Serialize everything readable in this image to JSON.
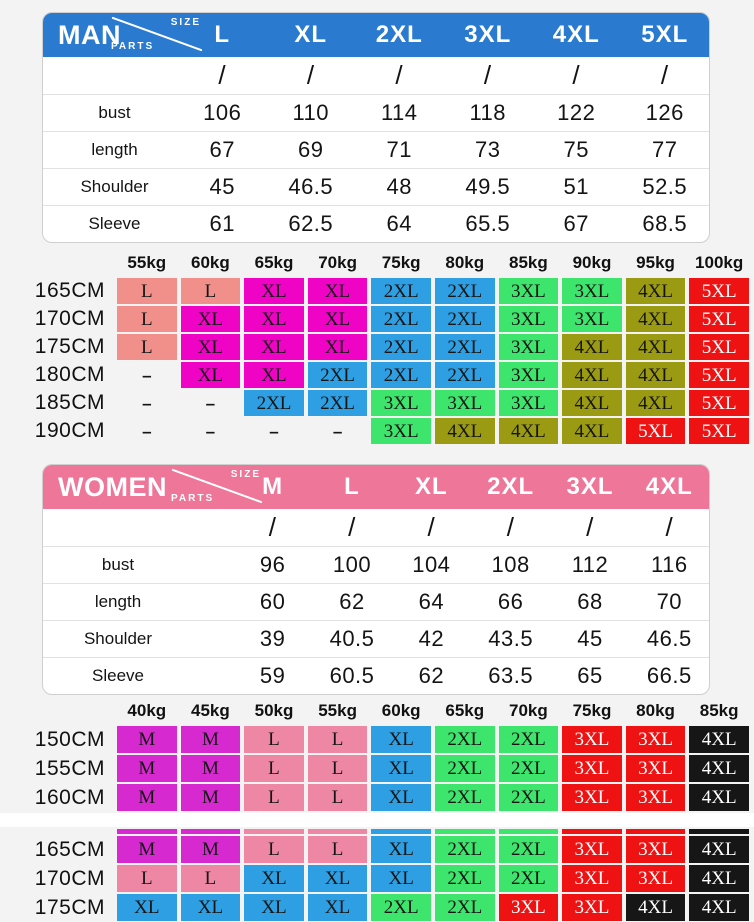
{
  "colors": {
    "salmon": "#f1908a",
    "magenta": "#ef04c6",
    "blue": "#2d9fe2",
    "green": "#3de56d",
    "olive": "#9b9b13",
    "red": "#ee1212",
    "purple": "#d62ad0",
    "pink": "#ee87a3",
    "black": "#161616"
  },
  "white_text": [
    "red",
    "black"
  ],
  "man": {
    "title": "MAN",
    "corner_size": "SIZE",
    "corner_parts": "PARTS",
    "sizes": [
      "L",
      "XL",
      "2XL",
      "3XL",
      "4XL",
      "5XL"
    ],
    "rows": [
      {
        "label": "",
        "values": [
          "/",
          "/",
          "/",
          "/",
          "/",
          "/"
        ]
      },
      {
        "label": "bust",
        "values": [
          "106",
          "110",
          "114",
          "118",
          "122",
          "126"
        ]
      },
      {
        "label": "length",
        "values": [
          "67",
          "69",
          "71",
          "73",
          "75",
          "77"
        ]
      },
      {
        "label": "Shoulder",
        "values": [
          "45",
          "46.5",
          "48",
          "49.5",
          "51",
          "52.5"
        ]
      },
      {
        "label": "Sleeve",
        "values": [
          "61",
          "62.5",
          "64",
          "65.5",
          "67",
          "68.5"
        ]
      }
    ],
    "grid": {
      "weights": [
        "55kg",
        "60kg",
        "65kg",
        "70kg",
        "75kg",
        "80kg",
        "85kg",
        "90kg",
        "95kg",
        "100kg"
      ],
      "rows": [
        {
          "h": "165CM",
          "c": [
            [
              "L",
              "salmon"
            ],
            [
              "L",
              "salmon"
            ],
            [
              "XL",
              "magenta"
            ],
            [
              "XL",
              "magenta"
            ],
            [
              "2XL",
              "blue"
            ],
            [
              "2XL",
              "blue"
            ],
            [
              "3XL",
              "green"
            ],
            [
              "3XL",
              "green"
            ],
            [
              "4XL",
              "olive"
            ],
            [
              "5XL",
              "red"
            ]
          ]
        },
        {
          "h": "170CM",
          "c": [
            [
              "L",
              "salmon"
            ],
            [
              "XL",
              "magenta"
            ],
            [
              "XL",
              "magenta"
            ],
            [
              "XL",
              "magenta"
            ],
            [
              "2XL",
              "blue"
            ],
            [
              "2XL",
              "blue"
            ],
            [
              "3XL",
              "green"
            ],
            [
              "3XL",
              "green"
            ],
            [
              "4XL",
              "olive"
            ],
            [
              "5XL",
              "red"
            ]
          ]
        },
        {
          "h": "175CM",
          "c": [
            [
              "L",
              "salmon"
            ],
            [
              "XL",
              "magenta"
            ],
            [
              "XL",
              "magenta"
            ],
            [
              "XL",
              "magenta"
            ],
            [
              "2XL",
              "blue"
            ],
            [
              "2XL",
              "blue"
            ],
            [
              "3XL",
              "green"
            ],
            [
              "4XL",
              "olive"
            ],
            [
              "4XL",
              "olive"
            ],
            [
              "5XL",
              "red"
            ]
          ]
        },
        {
          "h": "180CM",
          "c": [
            [
              "–",
              "none"
            ],
            [
              "XL",
              "magenta"
            ],
            [
              "XL",
              "magenta"
            ],
            [
              "2XL",
              "blue"
            ],
            [
              "2XL",
              "blue"
            ],
            [
              "2XL",
              "blue"
            ],
            [
              "3XL",
              "green"
            ],
            [
              "4XL",
              "olive"
            ],
            [
              "4XL",
              "olive"
            ],
            [
              "5XL",
              "red"
            ]
          ]
        },
        {
          "h": "185CM",
          "c": [
            [
              "–",
              "none"
            ],
            [
              "–",
              "none"
            ],
            [
              "2XL",
              "blue"
            ],
            [
              "2XL",
              "blue"
            ],
            [
              "3XL",
              "green"
            ],
            [
              "3XL",
              "green"
            ],
            [
              "3XL",
              "green"
            ],
            [
              "4XL",
              "olive"
            ],
            [
              "4XL",
              "olive"
            ],
            [
              "5XL",
              "red"
            ]
          ]
        },
        {
          "h": "190CM",
          "c": [
            [
              "–",
              "none"
            ],
            [
              "–",
              "none"
            ],
            [
              "–",
              "none"
            ],
            [
              "–",
              "none"
            ],
            [
              "3XL",
              "green"
            ],
            [
              "4XL",
              "olive"
            ],
            [
              "4XL",
              "olive"
            ],
            [
              "4XL",
              "olive"
            ],
            [
              "5XL",
              "red"
            ],
            [
              "5XL",
              "red"
            ]
          ]
        }
      ]
    }
  },
  "women": {
    "title": "WOMEN",
    "corner_size": "SIZE",
    "corner_parts": "PARTS",
    "sizes": [
      "M",
      "L",
      "XL",
      "2XL",
      "3XL",
      "4XL"
    ],
    "rows": [
      {
        "label": "",
        "values": [
          "/",
          "/",
          "/",
          "/",
          "/",
          "/"
        ]
      },
      {
        "label": "bust",
        "values": [
          "96",
          "100",
          "104",
          "108",
          "112",
          "116"
        ]
      },
      {
        "label": "length",
        "values": [
          "60",
          "62",
          "64",
          "66",
          "68",
          "70"
        ]
      },
      {
        "label": "Shoulder",
        "values": [
          "39",
          "40.5",
          "42",
          "43.5",
          "45",
          "46.5"
        ]
      },
      {
        "label": "Sleeve",
        "values": [
          "59",
          "60.5",
          "62",
          "63.5",
          "65",
          "66.5"
        ]
      }
    ],
    "grid": {
      "weights": [
        "40kg",
        "45kg",
        "50kg",
        "55kg",
        "60kg",
        "65kg",
        "70kg",
        "75kg",
        "80kg",
        "85kg"
      ],
      "rows_top": [
        {
          "h": "150CM",
          "c": [
            [
              "M",
              "purple"
            ],
            [
              "M",
              "purple"
            ],
            [
              "L",
              "pink"
            ],
            [
              "L",
              "pink"
            ],
            [
              "XL",
              "blue"
            ],
            [
              "2XL",
              "green"
            ],
            [
              "2XL",
              "green"
            ],
            [
              "3XL",
              "red"
            ],
            [
              "3XL",
              "red"
            ],
            [
              "4XL",
              "black"
            ]
          ]
        },
        {
          "h": "155CM",
          "c": [
            [
              "M",
              "purple"
            ],
            [
              "M",
              "purple"
            ],
            [
              "L",
              "pink"
            ],
            [
              "L",
              "pink"
            ],
            [
              "XL",
              "blue"
            ],
            [
              "2XL",
              "green"
            ],
            [
              "2XL",
              "green"
            ],
            [
              "3XL",
              "red"
            ],
            [
              "3XL",
              "red"
            ],
            [
              "4XL",
              "black"
            ]
          ]
        },
        {
          "h": "160CM",
          "c": [
            [
              "M",
              "purple"
            ],
            [
              "M",
              "purple"
            ],
            [
              "L",
              "pink"
            ],
            [
              "L",
              "pink"
            ],
            [
              "XL",
              "blue"
            ],
            [
              "2XL",
              "green"
            ],
            [
              "2XL",
              "green"
            ],
            [
              "3XL",
              "red"
            ],
            [
              "3XL",
              "red"
            ],
            [
              "4XL",
              "black"
            ]
          ]
        }
      ],
      "sliver": [
        "purple",
        "purple",
        "pink",
        "pink",
        "blue",
        "green",
        "green",
        "red",
        "red",
        "black"
      ],
      "rows_bottom": [
        {
          "h": "165CM",
          "c": [
            [
              "M",
              "purple"
            ],
            [
              "M",
              "purple"
            ],
            [
              "L",
              "pink"
            ],
            [
              "L",
              "pink"
            ],
            [
              "XL",
              "blue"
            ],
            [
              "2XL",
              "green"
            ],
            [
              "2XL",
              "green"
            ],
            [
              "3XL",
              "red"
            ],
            [
              "3XL",
              "red"
            ],
            [
              "4XL",
              "black"
            ]
          ]
        },
        {
          "h": "170CM",
          "c": [
            [
              "L",
              "pink"
            ],
            [
              "L",
              "pink"
            ],
            [
              "XL",
              "blue"
            ],
            [
              "XL",
              "blue"
            ],
            [
              "XL",
              "blue"
            ],
            [
              "2XL",
              "green"
            ],
            [
              "2XL",
              "green"
            ],
            [
              "3XL",
              "red"
            ],
            [
              "3XL",
              "red"
            ],
            [
              "4XL",
              "black"
            ]
          ]
        },
        {
          "h": "175CM",
          "c": [
            [
              "XL",
              "blue"
            ],
            [
              "XL",
              "blue"
            ],
            [
              "XL",
              "blue"
            ],
            [
              "XL",
              "blue"
            ],
            [
              "2XL",
              "green"
            ],
            [
              "2XL",
              "green"
            ],
            [
              "3XL",
              "red"
            ],
            [
              "3XL",
              "red"
            ],
            [
              "4XL",
              "black"
            ],
            [
              "4XL",
              "black"
            ]
          ]
        }
      ]
    }
  }
}
